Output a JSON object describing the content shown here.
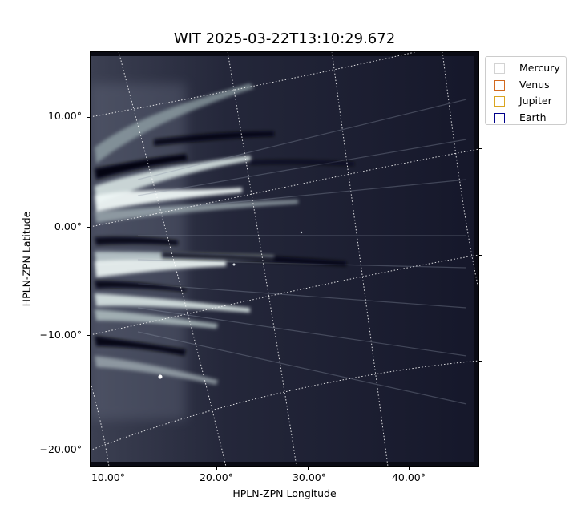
{
  "figure": {
    "title": "WIT 2025-03-22T13:10:29.672",
    "xlabel": "HPLN-ZPN Longitude",
    "ylabel": "HPLN-ZPN Latitude",
    "colormap": "bone (grayscale with blue tint)"
  },
  "y_ticks": [
    {
      "label": "10.00°"
    },
    {
      "label": "0.00°"
    },
    {
      "label": "−10.00°"
    },
    {
      "label": "−20.00°"
    }
  ],
  "x_ticks": [
    {
      "label": "10.00°"
    },
    {
      "label": "20.00°"
    },
    {
      "label": "30.00°"
    },
    {
      "label": "40.00°"
    }
  ],
  "legend": {
    "placement": "upper-right outside axes",
    "items": [
      {
        "label": "Mercury",
        "color": "#d3d3d3"
      },
      {
        "label": "Venus",
        "color": "#d2691e"
      },
      {
        "label": "Jupiter",
        "color": "#daa520"
      },
      {
        "label": "Earth",
        "color": "#00008b"
      }
    ]
  },
  "grid": {
    "style": "dotted",
    "color": "#ffffff"
  }
}
